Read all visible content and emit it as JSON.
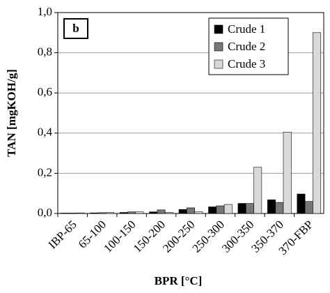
{
  "chart_data": {
    "type": "bar",
    "annotation": "b",
    "x_label": "BPR [°C]",
    "y_label": "TAN [mgKOH/g]",
    "categories": [
      "IBP-65",
      "65-100",
      "100-150",
      "150-200",
      "200-250",
      "250-300",
      "300-350",
      "350-370",
      "370-FBP"
    ],
    "series": [
      {
        "name": "Crude 1",
        "color": "#000000",
        "values": [
          0.002,
          0.003,
          0.005,
          0.008,
          0.02,
          0.033,
          0.05,
          0.068,
          0.097
        ]
      },
      {
        "name": "Crude 2",
        "color": "#777777",
        "values": [
          0.002,
          0.004,
          0.008,
          0.018,
          0.028,
          0.038,
          0.05,
          0.055,
          0.06
        ]
      },
      {
        "name": "Crude 3",
        "color": "#d9d9d9",
        "values": [
          0.003,
          0.005,
          0.008,
          0.005,
          0.008,
          0.045,
          0.23,
          0.405,
          0.9
        ]
      }
    ],
    "ylim": [
      0,
      1
    ],
    "yticks": [
      {
        "value": 0,
        "label": "0,0"
      },
      {
        "value": 0.2,
        "label": "0,2"
      },
      {
        "value": 0.4,
        "label": "0,4"
      },
      {
        "value": 0.6,
        "label": "0,6"
      },
      {
        "value": 0.8,
        "label": "0,8"
      },
      {
        "value": 1,
        "label": "1,0"
      }
    ],
    "grid": true,
    "legend": "top-right"
  }
}
